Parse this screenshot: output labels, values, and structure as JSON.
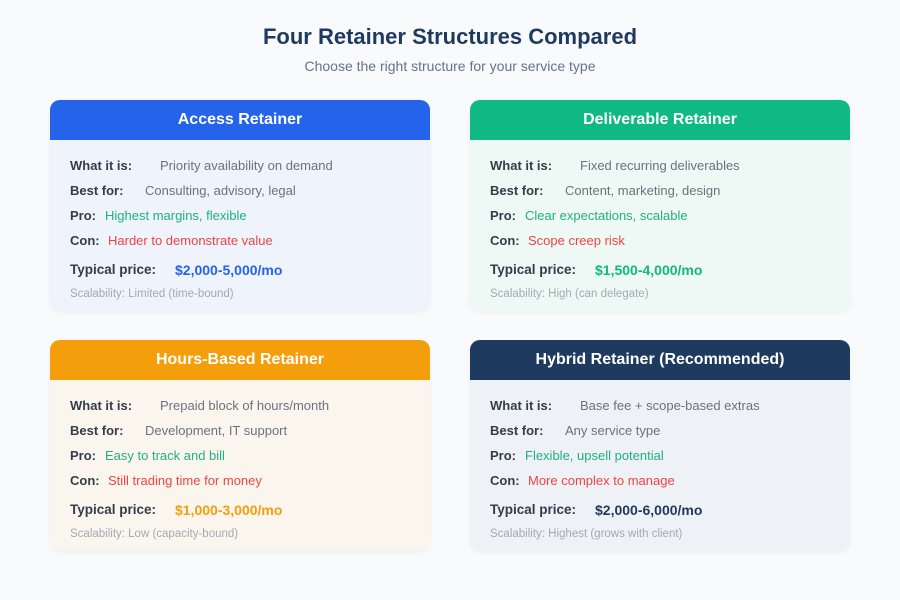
{
  "title": "Four Retainer Structures Compared",
  "subtitle": "Choose the right structure for your service type",
  "labels": {
    "what": "What it is:",
    "best": "Best for:",
    "pro": "Pro:",
    "con": "Con:",
    "price": "Typical price:"
  },
  "cards": [
    {
      "name": "Access Retainer",
      "color": "#2563eb",
      "bg": "#eef3fc",
      "price_color": "#2563eb",
      "what": "Priority availability on demand",
      "best": "Consulting, advisory, legal",
      "pro": "Highest margins, flexible",
      "con": "Harder to demonstrate value",
      "price": "$2,000-5,000/mo",
      "scalability": "Scalability: Limited (time-bound)"
    },
    {
      "name": "Deliverable Retainer",
      "color": "#10b981",
      "bg": "#eef8f4",
      "price_color": "#10b981",
      "what": "Fixed recurring deliverables",
      "best": "Content, marketing, design",
      "pro": "Clear expectations, scalable",
      "con": "Scope creep risk",
      "price": "$1,500-4,000/mo",
      "scalability": "Scalability: High (can delegate)"
    },
    {
      "name": "Hours-Based Retainer",
      "color": "#f59e0b",
      "bg": "#faf6ee",
      "price_color": "#f59e0b",
      "what": "Prepaid block of hours/month",
      "best": "Development, IT support",
      "pro": "Easy to track and bill",
      "con": "Still trading time for money",
      "price": "$1,000-3,000/mo",
      "scalability": "Scalability: Low (capacity-bound)"
    },
    {
      "name": "Hybrid Retainer (Recommended)",
      "color": "#1e3a5f",
      "bg": "#eef1f6",
      "price_color": "#1e3a5f",
      "what": "Base fee + scope-based extras",
      "best": "Any service type",
      "pro": "Flexible, upsell potential",
      "con": "More complex to manage",
      "price": "$2,000-6,000/mo",
      "scalability": "Scalability: Highest (grows with client)"
    }
  ]
}
